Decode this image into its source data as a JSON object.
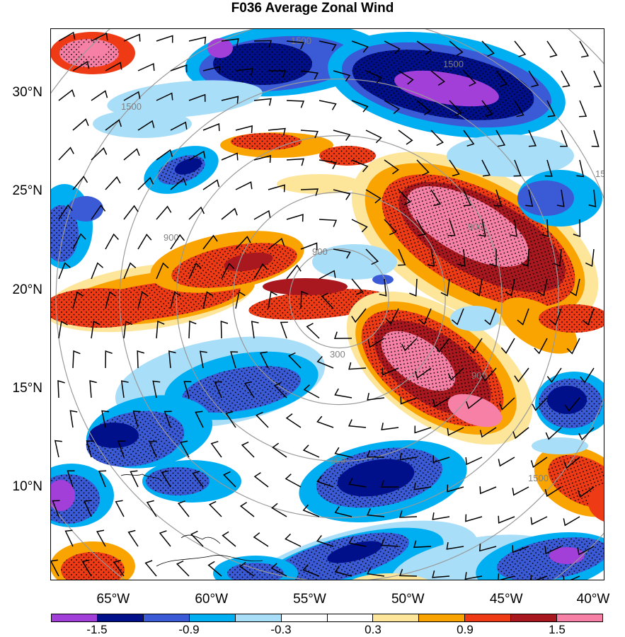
{
  "title": "F036 Average Zonal Wind",
  "map": {
    "lat_labels": [
      "30°N",
      "25°N",
      "20°N",
      "15°N",
      "10°N"
    ],
    "lon_labels": [
      "65°W",
      "60°W",
      "55°W",
      "50°W",
      "45°W",
      "40°W"
    ],
    "lat_range": [
      5.3,
      33.3
    ],
    "lon_range": [
      -68.2,
      -40.0
    ],
    "range_ring_labels": [
      "1500",
      "1500",
      "1500",
      "900",
      "900",
      "900",
      "300",
      "300",
      "900",
      "1500",
      "1500"
    ],
    "range_ring_center": {
      "lon": -53.5,
      "lat": 19.6
    }
  },
  "colorbar": {
    "colors": [
      "#a23fd9",
      "#000f8a",
      "#3a5ad6",
      "#00aef2",
      "#a8def8",
      "#ffffff",
      "#ffffff",
      "#fde59a",
      "#f9a400",
      "#ee3b16",
      "#a9181e",
      "#f780a6"
    ],
    "labels": [
      "-1.5",
      "-0.9",
      "-0.3",
      "0.3",
      "0.9",
      "1.5"
    ]
  }
}
